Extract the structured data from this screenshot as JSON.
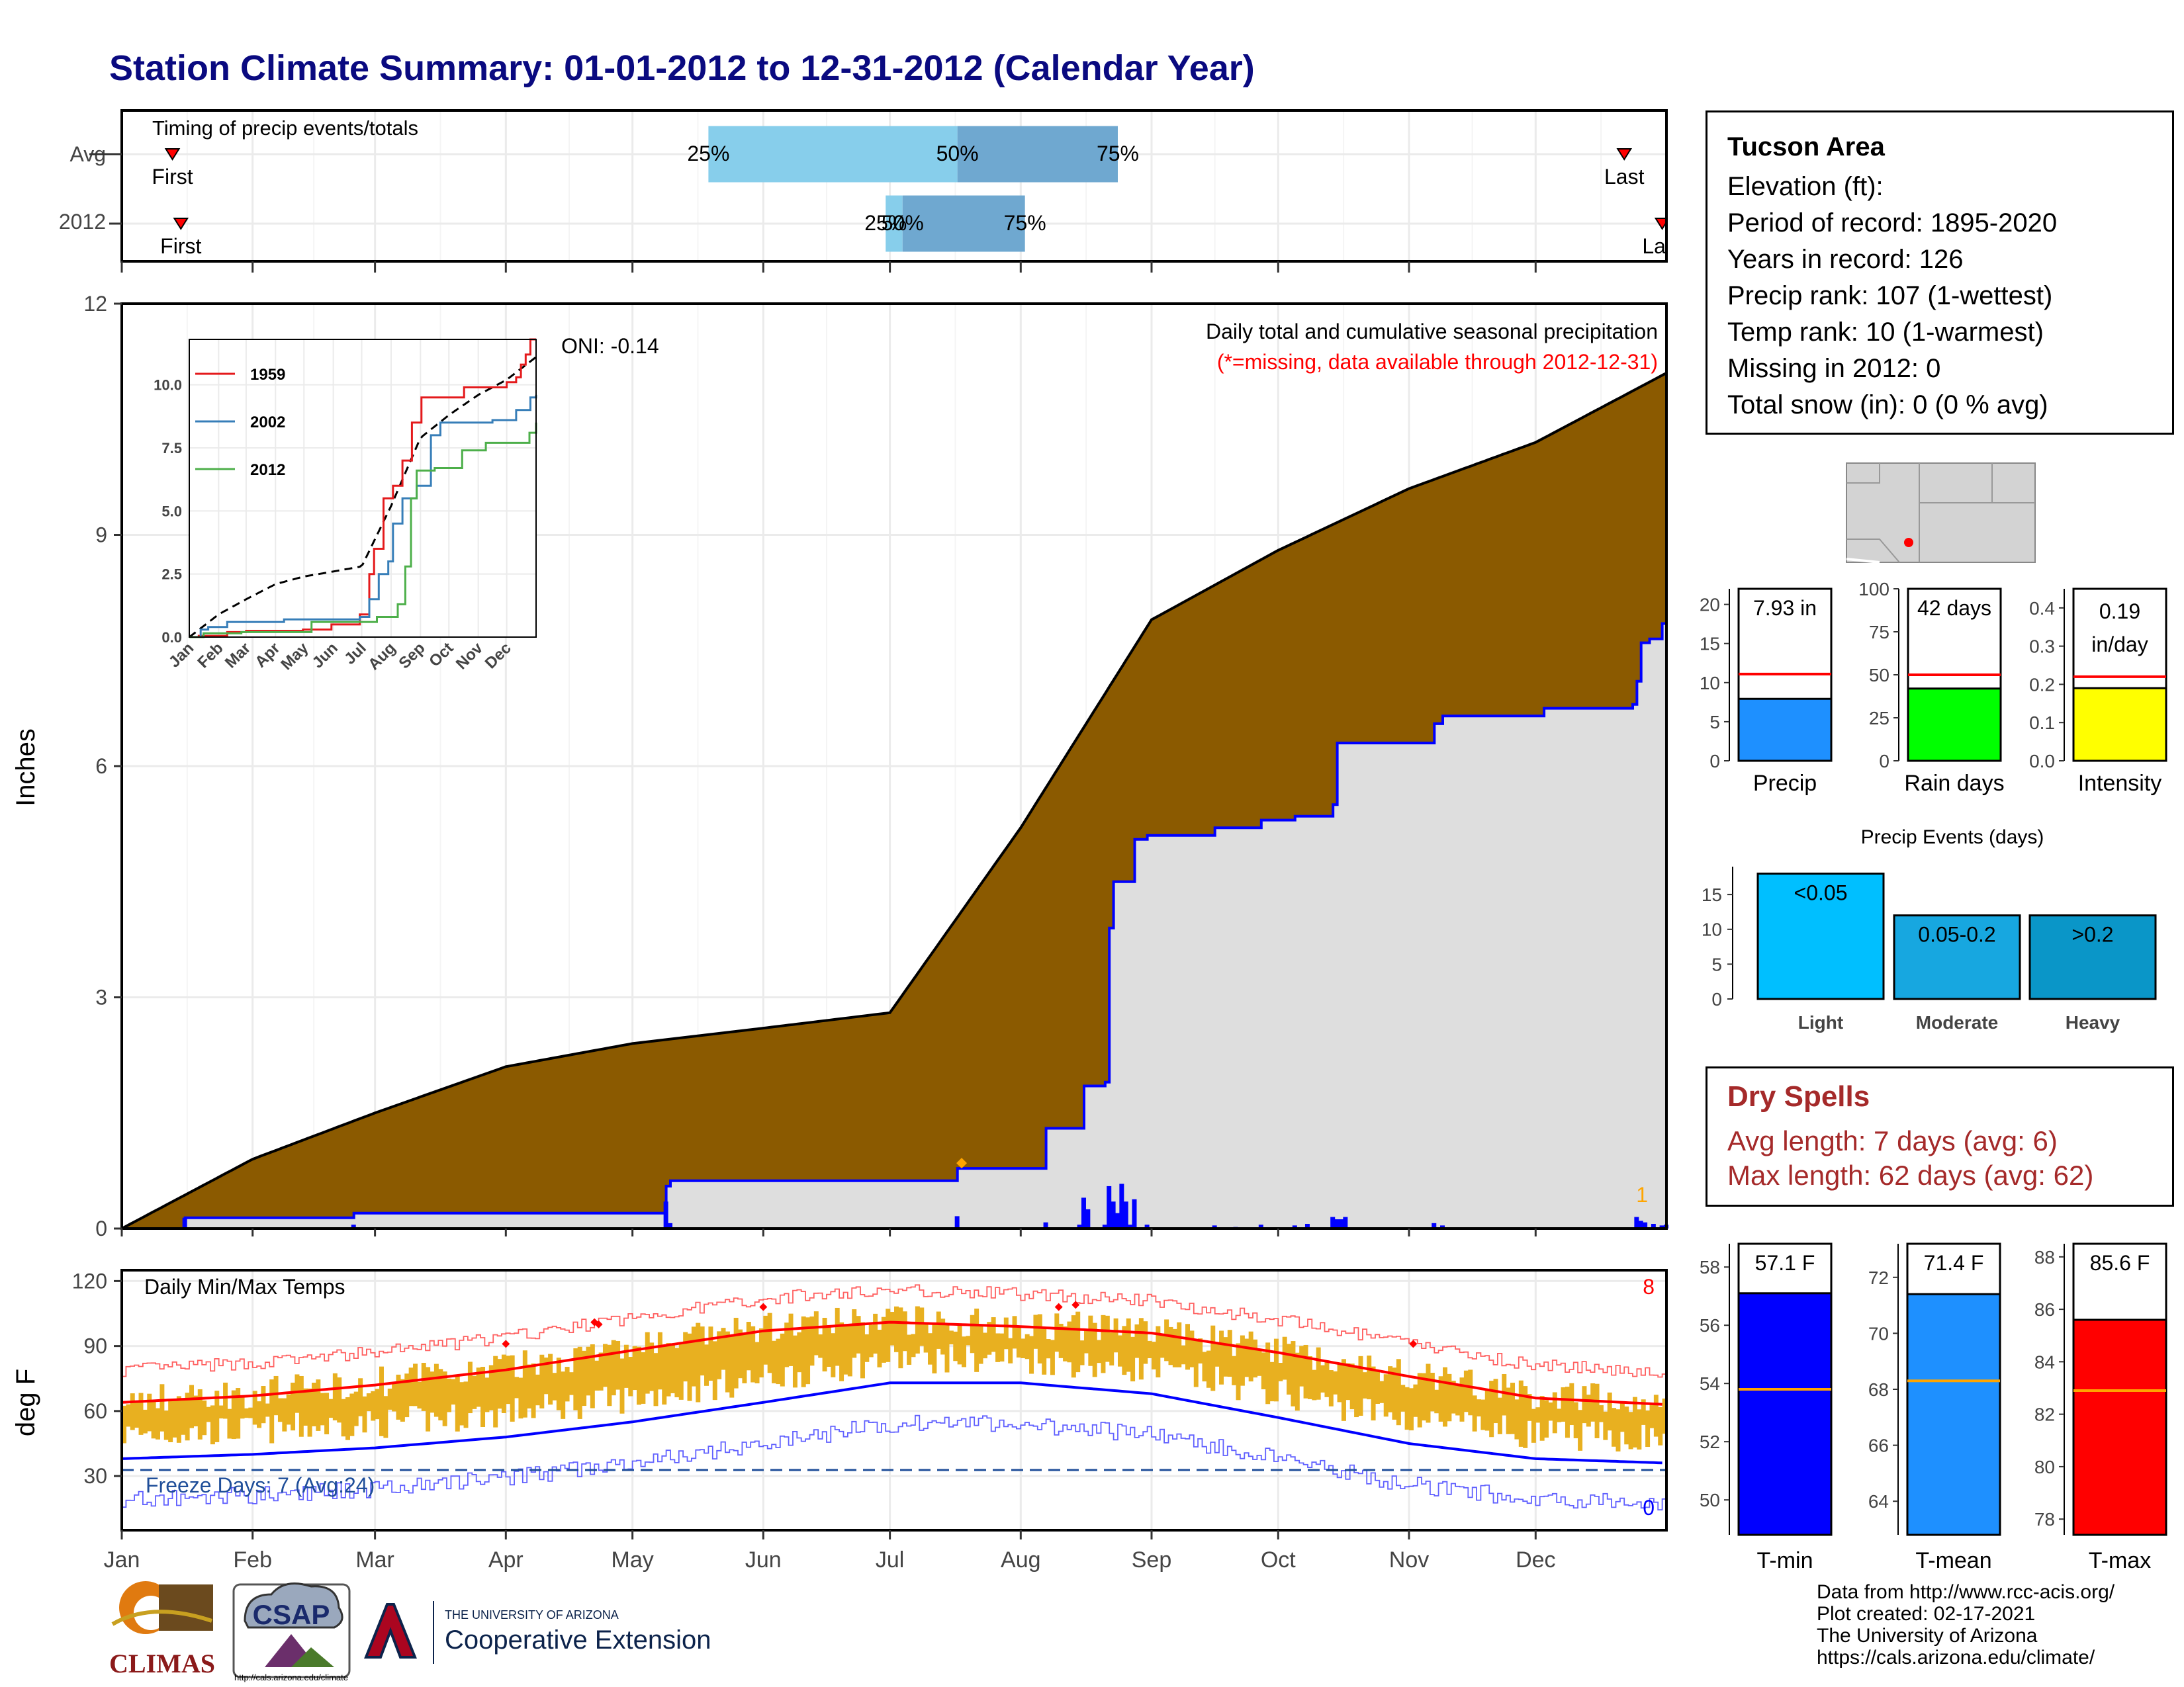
{
  "title": "Station Climate Summary: 01-01-2012 to 12-31-2012 (Calendar Year)",
  "colors": {
    "title": "#0a0a80",
    "precip_cum": "#8b5a00",
    "excess": "#008000",
    "current": "#dedede",
    "current_line": "#0000ff",
    "daily_bar": "#0000ff",
    "temp_bar": "#e8b020",
    "norm_max": "#ff0000",
    "norm_min": "#0000ff",
    "dry_text": "#a52a2a"
  },
  "timing": {
    "title": "Timing of precip events/totals",
    "rows": [
      {
        "label": "Avg",
        "first_doy": 12,
        "last_doy": 356,
        "p25_doy": 139,
        "p50_doy": 198,
        "p75_doy": 236,
        "first_label": "First",
        "last_label": "Last",
        "p25_label": "25%",
        "p50_label": "50%",
        "p75_label": "75%"
      },
      {
        "label": "2012",
        "first_doy": 14,
        "last_doy": 365,
        "p25_doy": 181,
        "p50_doy": 185,
        "p75_doy": 214,
        "first_label": "First",
        "last_label": "Last",
        "p25_label": "25%",
        "p50_label": "50%",
        "p75_label": "75%"
      }
    ]
  },
  "main": {
    "title": "Daily total and cumulative seasonal precipitation",
    "subtitle": "(*=missing, data available through 2012-12-31)",
    "oni": "ONI: -0.14",
    "ylabel": "Inches",
    "yticks": [
      "0",
      "3",
      "6",
      "9",
      "12"
    ],
    "ylim": [
      0,
      12
    ],
    "late_count": "1",
    "xticks": [
      "Jan",
      "Feb",
      "Mar",
      "Apr",
      "May",
      "Jun",
      "Jul",
      "Aug",
      "Sep",
      "Oct",
      "Nov",
      "Dec"
    ]
  },
  "inset": {
    "yticks": [
      "0.0",
      "2.5",
      "5.0",
      "7.5",
      "10.0"
    ],
    "xticks": [
      "Jan",
      "Feb",
      "Mar",
      "Apr",
      "May",
      "Jun",
      "Jul",
      "Aug",
      "Sep",
      "Oct",
      "Nov",
      "Dec"
    ],
    "series": [
      {
        "name": "1959",
        "color": "#e41a1c"
      },
      {
        "name": "2002",
        "color": "#377eb8"
      },
      {
        "name": "2012",
        "color": "#4daf4a"
      }
    ]
  },
  "temp": {
    "title": "Daily Min/Max Temps",
    "ylabel": "deg F",
    "yticks": [
      "30",
      "60",
      "90",
      "120"
    ],
    "ylim": [
      5,
      125
    ],
    "record_count": "8",
    "freeze_text": "Freeze Days: 7 (Avg:24)",
    "freeze_count": "0"
  },
  "station": {
    "name": "Tucson Area",
    "elevation": "Elevation (ft):",
    "period": "Period of record: 1895-2020",
    "years": "Years in record: 126",
    "precip_rank": "Precip rank: 107 (1-wettest)",
    "temp_rank": "Temp rank: 10 (1-warmest)",
    "missing": "Missing in 2012: 0",
    "snow": "Total snow (in): 0 (0 % avg)"
  },
  "summary_bars": [
    {
      "label": "Precip",
      "value_text": "7.93 in",
      "value": 7.93,
      "avg": 11.1,
      "yticks": [
        "0",
        "5",
        "10",
        "15",
        "20"
      ],
      "ymax": 22,
      "color": "#1e90ff"
    },
    {
      "label": "Rain days",
      "value_text": "42 days",
      "value": 42,
      "avg": 50,
      "yticks": [
        "0",
        "25",
        "50",
        "75",
        "100"
      ],
      "ymax": 100,
      "color": "#00ff00"
    },
    {
      "label": "Intensity",
      "value_text": "0.19 in/day",
      "value_line1": "0.19",
      "value_line2": "in/day",
      "value": 0.19,
      "avg": 0.22,
      "yticks": [
        "0.0",
        "0.1",
        "0.2",
        "0.3",
        "0.4"
      ],
      "ymax": 0.45,
      "color": "#ffff00"
    }
  ],
  "events": {
    "title": "Precip Events (days)",
    "yticks": [
      "0",
      "5",
      "10",
      "15"
    ],
    "ymax": 19,
    "bars": [
      {
        "label": "Light",
        "tag": "<0.05",
        "value": 18,
        "color": "#00bfff"
      },
      {
        "label": "Moderate",
        "tag": "0.05-0.2",
        "value": 12,
        "color": "#17a7e0"
      },
      {
        "label": "Heavy",
        "tag": ">0.2",
        "value": 12,
        "color": "#0a96c8"
      }
    ]
  },
  "dry": {
    "title": "Dry Spells",
    "avg": "Avg length: 7 days (avg: 6)",
    "max": "Max length: 62 days (avg: 62)"
  },
  "temp_bars": [
    {
      "label": "T-min",
      "value_text": "57.1 F",
      "value": 57.1,
      "avg": 53.8,
      "yticks": [
        "50",
        "52",
        "54",
        "56",
        "58"
      ],
      "ymin": 48.8,
      "ymax": 58.8,
      "color": "#0000ff"
    },
    {
      "label": "T-mean",
      "value_text": "71.4 F",
      "value": 71.4,
      "avg": 68.3,
      "yticks": [
        "64",
        "66",
        "68",
        "70",
        "72"
      ],
      "ymin": 62.8,
      "ymax": 73.2,
      "color": "#1e90ff"
    },
    {
      "label": "T-max",
      "value_text": "85.6 F",
      "value": 85.6,
      "avg": 82.9,
      "yticks": [
        "78",
        "80",
        "82",
        "84",
        "86",
        "88"
      ],
      "ymin": 77.4,
      "ymax": 88.5,
      "color": "#ff0000"
    }
  ],
  "footer": {
    "line1": "Data from http://www.rcc-acis.org/",
    "line2": "Plot created: 02-17-2021",
    "line3": "The University of Arizona",
    "line4": "https://cals.arizona.edu/climate/"
  },
  "logos": {
    "climas": "CLIMAS",
    "csap": "CSAP",
    "csap_url": "http://cals.arizona.edu/climate",
    "ua_small": "THE UNIVERSITY OF ARIZONA",
    "ua_big": "Cooperative Extension"
  },
  "chart_data": [
    {
      "type": "area",
      "title": "Daily total and cumulative seasonal precipitation",
      "ylabel": "Inches",
      "ylim": [
        0,
        12
      ],
      "x": [
        "Jan",
        "Feb",
        "Mar",
        "Apr",
        "May",
        "Jun",
        "Jul",
        "Aug",
        "Sep",
        "Oct",
        "Nov",
        "Dec",
        "Dec-31"
      ],
      "series": [
        {
          "name": "Average cumulative",
          "values": [
            0.0,
            0.9,
            1.5,
            2.1,
            2.4,
            2.6,
            2.8,
            5.2,
            7.9,
            8.8,
            9.6,
            10.2,
            11.1
          ]
        },
        {
          "name": "2012 cumulative",
          "values": [
            0.0,
            0.15,
            0.2,
            0.2,
            0.55,
            0.65,
            0.8,
            5.1,
            6.2,
            6.7,
            6.7,
            6.9,
            7.93
          ]
        }
      ]
    },
    {
      "type": "line",
      "title": "Daily Min/Max Temps",
      "ylabel": "deg F",
      "ylim": [
        5,
        125
      ],
      "x": [
        "Jan",
        "Feb",
        "Mar",
        "Apr",
        "May",
        "Jun",
        "Jul",
        "Aug",
        "Sep",
        "Oct",
        "Nov",
        "Dec",
        "Dec-31"
      ],
      "series": [
        {
          "name": "Normal max",
          "values": [
            64,
            67,
            72,
            79,
            88,
            97,
            101,
            99,
            96,
            87,
            76,
            66,
            63
          ]
        },
        {
          "name": "Normal min",
          "values": [
            38,
            40,
            43,
            48,
            55,
            64,
            73,
            73,
            68,
            57,
            45,
            38,
            36
          ]
        }
      ]
    }
  ]
}
